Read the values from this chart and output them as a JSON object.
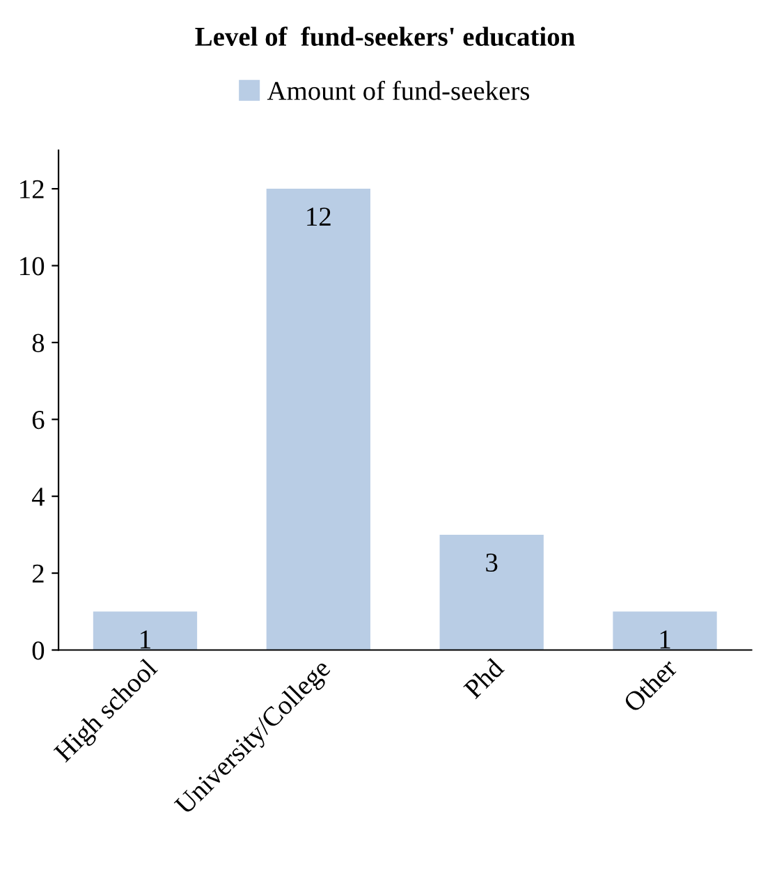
{
  "chart_data": {
    "type": "bar",
    "title": "Level of  fund-seekers' education",
    "categories": [
      "High school",
      "University/College",
      "Phd",
      "Other"
    ],
    "series": [
      {
        "name": "Amount of fund-seekers",
        "color": "#b9cde5",
        "values": [
          1,
          12,
          3,
          1
        ]
      }
    ],
    "ylim": [
      0,
      13
    ],
    "yticks": [
      0,
      2,
      4,
      6,
      8,
      10,
      12
    ],
    "data_labels": true,
    "grid": false,
    "legend": "top"
  }
}
